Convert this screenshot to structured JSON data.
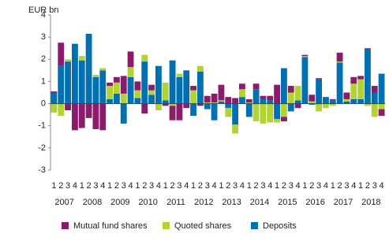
{
  "chart_data": {
    "type": "stacked_bar",
    "y_label": "EUR bn",
    "categories": [
      "1",
      "2",
      "3",
      "4",
      "1",
      "2",
      "3",
      "4",
      "1",
      "2",
      "3",
      "4",
      "1",
      "2",
      "3",
      "4",
      "1",
      "2",
      "3",
      "4",
      "1",
      "2",
      "3",
      "4",
      "1",
      "2",
      "3",
      "4",
      "1",
      "2",
      "3",
      "4",
      "1",
      "2",
      "3",
      "4",
      "1",
      "2",
      "3",
      "4",
      "1",
      "2",
      "3",
      "4",
      "1",
      "2",
      "3",
      "4"
    ],
    "years": [
      "2007",
      "2008",
      "2009",
      "2010",
      "2011",
      "2012",
      "2013",
      "2014",
      "2015",
      "2016",
      "2017",
      "2018"
    ],
    "ylim": [
      -3,
      4
    ],
    "yticks": [
      -3,
      -2,
      -1,
      0,
      1,
      2,
      3,
      4
    ],
    "legend": "bottom",
    "series": [
      {
        "name": "Mutual fund shares",
        "color": "#8b1c6c",
        "values": [
          0.05,
          1.05,
          -0.3,
          -1.2,
          -1.1,
          -0.65,
          -1.15,
          -1.2,
          0.15,
          0.25,
          0.8,
          0.7,
          0.4,
          -0.45,
          0.25,
          0.0,
          -0.1,
          -0.65,
          -0.75,
          -0.2,
          0.2,
          -0.1,
          0.3,
          0.4,
          0.7,
          0.3,
          0.25,
          0.25,
          0.15,
          0.25,
          0.15,
          0.2,
          0.85,
          -0.2,
          0.3,
          -0.2,
          0.05,
          0.3,
          0.05,
          0.0,
          0.05,
          0.4,
          0.3,
          0.3,
          0.15,
          0.05,
          0.3,
          -0.3
        ]
      },
      {
        "name": "Quoted shares",
        "color": "#b3d335",
        "values": [
          -0.4,
          -0.55,
          0.1,
          0.0,
          0.2,
          0.0,
          0.1,
          0.1,
          0.6,
          0.5,
          0.45,
          0.45,
          0.35,
          0.3,
          0.2,
          -0.3,
          0.8,
          -0.1,
          0.15,
          0.0,
          0.6,
          0.25,
          0.05,
          0.05,
          0.05,
          -0.4,
          -0.4,
          0.35,
          0.05,
          -0.8,
          -0.9,
          -0.85,
          -0.15,
          -0.6,
          0.5,
          0.65,
          0.05,
          0.1,
          -0.35,
          -0.2,
          -0.1,
          0.05,
          0.1,
          0.7,
          0.9,
          -0.1,
          -0.6,
          -0.25
        ]
      },
      {
        "name": "Deposits",
        "color": "#0070b0",
        "values": [
          0.5,
          1.7,
          1.9,
          2.7,
          1.95,
          3.15,
          1.2,
          1.5,
          0.2,
          0.45,
          -0.9,
          1.2,
          0.25,
          1.9,
          0.4,
          1.7,
          0.15,
          1.95,
          1.2,
          1.5,
          -0.55,
          1.45,
          -0.25,
          -0.75,
          0.1,
          -0.2,
          -0.95,
          0.3,
          -0.6,
          0.65,
          0.2,
          0.15,
          -0.7,
          1.6,
          -0.35,
          0.15,
          2.1,
          -0.05,
          1.1,
          0.3,
          0.15,
          1.85,
          0.1,
          0.2,
          0.2,
          2.45,
          0.5,
          1.35
        ]
      }
    ]
  }
}
